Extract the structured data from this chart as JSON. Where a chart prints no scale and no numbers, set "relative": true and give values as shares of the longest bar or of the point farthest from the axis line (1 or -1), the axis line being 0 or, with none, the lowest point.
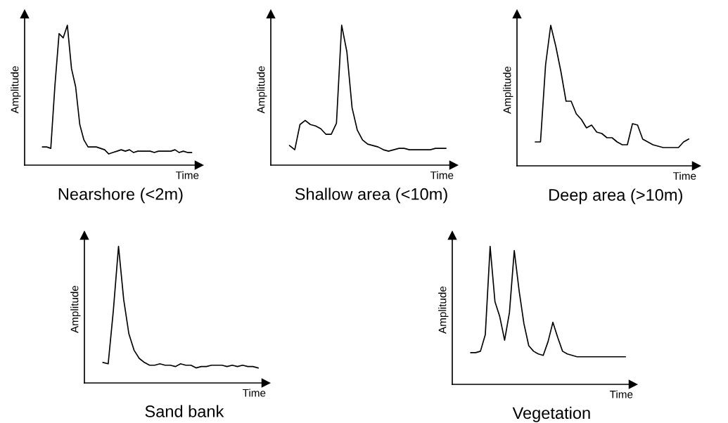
{
  "chart_data": [
    {
      "type": "line",
      "title": "Nearshore (<2m)",
      "xlabel": "Time",
      "ylabel": "Amplitude",
      "relative": true,
      "color": "#000000",
      "categories": [
        null,
        null,
        null,
        null,
        null,
        null,
        null,
        null,
        null,
        null,
        null,
        null,
        null,
        null,
        null,
        null,
        null,
        null,
        null,
        null,
        null,
        null,
        null,
        null,
        null,
        null,
        null,
        null,
        null,
        null,
        null,
        null,
        null,
        null,
        null,
        null,
        null
      ],
      "values": [
        0.13,
        0.13,
        0.12,
        0.57,
        0.94,
        0.91,
        1.0,
        0.69,
        0.56,
        0.29,
        0.18,
        0.13,
        0.13,
        0.13,
        0.12,
        0.11,
        0.08,
        0.09,
        0.1,
        0.11,
        0.1,
        0.11,
        0.09,
        0.1,
        0.1,
        0.1,
        0.1,
        0.09,
        0.1,
        0.1,
        0.1,
        0.1,
        0.11,
        0.09,
        0.1,
        0.09,
        0.09
      ]
    },
    {
      "type": "line",
      "title": "Shallow area (<10m)",
      "xlabel": "Time",
      "ylabel": "Amplitude",
      "relative": true,
      "color": "#000000",
      "categories": [
        null,
        null,
        null,
        null,
        null,
        null,
        null,
        null,
        null,
        null,
        null,
        null,
        null,
        null,
        null,
        null,
        null,
        null,
        null,
        null,
        null,
        null,
        null,
        null,
        null,
        null,
        null,
        null,
        null,
        null,
        null
      ],
      "values": [
        0.14,
        0.11,
        0.29,
        0.32,
        0.29,
        0.28,
        0.26,
        0.22,
        0.22,
        0.3,
        1.0,
        0.81,
        0.41,
        0.25,
        0.18,
        0.15,
        0.14,
        0.13,
        0.11,
        0.1,
        0.11,
        0.12,
        0.12,
        0.11,
        0.11,
        0.11,
        0.11,
        0.11,
        0.12,
        0.12,
        0.12
      ]
    },
    {
      "type": "line",
      "title": "Deep area (>10m)",
      "xlabel": "Time",
      "ylabel": "Amplitude",
      "relative": true,
      "color": "#000000",
      "categories": [
        null,
        null,
        null,
        null,
        null,
        null,
        null,
        null,
        null,
        null,
        null,
        null,
        null,
        null,
        null,
        null,
        null,
        null,
        null,
        null,
        null,
        null,
        null,
        null,
        null,
        null,
        null,
        null,
        null,
        null,
        null
      ],
      "values": [
        0.17,
        0.17,
        0.72,
        1.0,
        0.85,
        0.67,
        0.46,
        0.46,
        0.37,
        0.33,
        0.27,
        0.29,
        0.24,
        0.23,
        0.2,
        0.2,
        0.17,
        0.15,
        0.15,
        0.3,
        0.29,
        0.19,
        0.17,
        0.15,
        0.14,
        0.13,
        0.13,
        0.13,
        0.13,
        0.17,
        0.19
      ]
    },
    {
      "type": "line",
      "title": "Sand bank",
      "xlabel": "Time",
      "ylabel": "Amplitude",
      "relative": true,
      "color": "#000000",
      "categories": [
        null,
        null,
        null,
        null,
        null,
        null,
        null,
        null,
        null,
        null,
        null,
        null,
        null,
        null,
        null,
        null,
        null,
        null,
        null,
        null,
        null,
        null,
        null,
        null,
        null,
        null,
        null,
        null,
        null,
        null,
        null
      ],
      "values": [
        0.15,
        0.14,
        0.53,
        1.0,
        0.61,
        0.36,
        0.24,
        0.18,
        0.15,
        0.13,
        0.13,
        0.14,
        0.13,
        0.13,
        0.12,
        0.14,
        0.13,
        0.13,
        0.11,
        0.12,
        0.12,
        0.13,
        0.13,
        0.13,
        0.12,
        0.13,
        0.12,
        0.13,
        0.12,
        0.12,
        0.11
      ]
    },
    {
      "type": "line",
      "title": "Vegetation",
      "xlabel": "Time",
      "ylabel": "Amplitude",
      "relative": true,
      "color": "#000000",
      "categories": [
        null,
        null,
        null,
        null,
        null,
        null,
        null,
        null,
        null,
        null,
        null,
        null,
        null,
        null,
        null,
        null,
        null,
        null,
        null,
        null,
        null,
        null,
        null,
        null,
        null,
        null,
        null,
        null,
        null,
        null,
        null,
        null,
        null
      ],
      "values": [
        0.23,
        0.23,
        0.24,
        0.36,
        1.0,
        0.6,
        0.49,
        0.32,
        0.52,
        0.97,
        0.68,
        0.44,
        0.28,
        0.24,
        0.22,
        0.21,
        0.31,
        0.45,
        0.34,
        0.24,
        0.22,
        0.21,
        0.2,
        0.2,
        0.2,
        0.2,
        0.2,
        0.2,
        0.2,
        0.2,
        0.2,
        0.2,
        0.2
      ]
    }
  ]
}
